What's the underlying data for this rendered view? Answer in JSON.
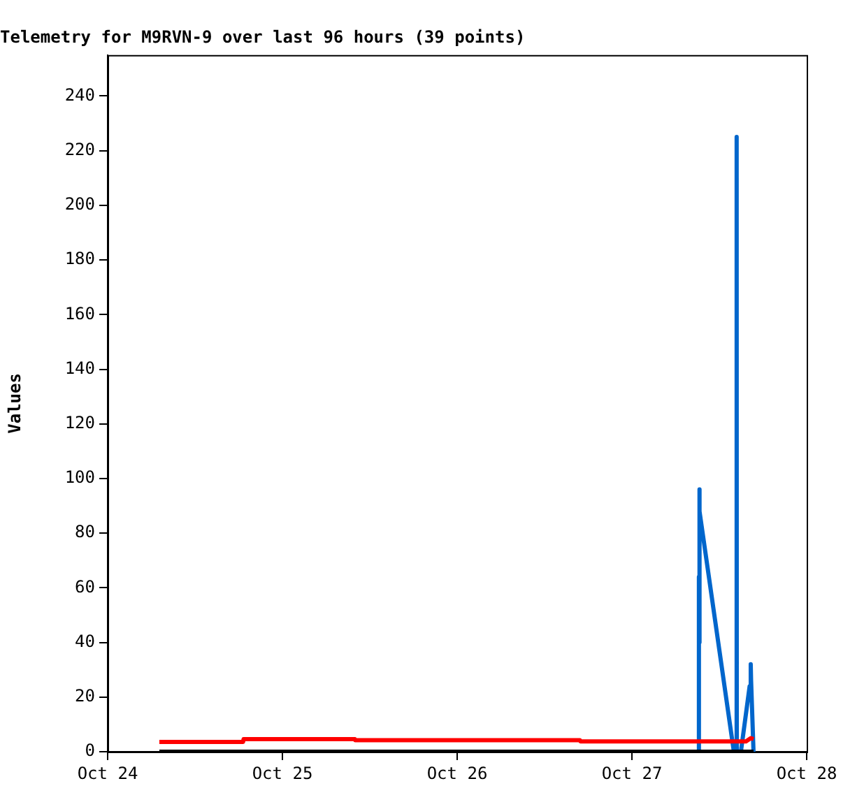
{
  "chart_data": {
    "type": "line",
    "title": "Telemetry for M9RVN-9 over last 96 hours (39 points)",
    "ylabel": "Values",
    "xlim": [
      "--10-24",
      "--10-28"
    ],
    "xticks": [
      {
        "value": "--10-24",
        "label": "Oct 24"
      },
      {
        "value": "--10-25",
        "label": "Oct 25"
      },
      {
        "value": "--10-26",
        "label": "Oct 26"
      },
      {
        "value": "--10-27",
        "label": "Oct 27"
      },
      {
        "value": "--10-28",
        "label": "Oct 28"
      }
    ],
    "ylim": [
      0,
      255
    ],
    "yticks": [
      0,
      20,
      40,
      60,
      80,
      100,
      120,
      140,
      160,
      180,
      200,
      220,
      240
    ],
    "grid": false,
    "legend": false,
    "marker": "none",
    "line_style": "solid",
    "series": [
      {
        "color": "#000000",
        "x": [
          "--10-24T07:06",
          "--10-27T16:42"
        ],
        "values": [
          0,
          0
        ]
      },
      {
        "color": "#ff0000",
        "x": [
          "--10-24T07:06",
          "--10-24T18:36",
          "--10-24T18:40",
          "--10-25T09:58",
          "--10-25T10:00",
          "--10-26T16:52",
          "--10-26T16:55",
          "--10-27T15:40",
          "--10-27T16:20",
          "--10-27T16:42"
        ],
        "values": [
          3.6,
          3.6,
          4.6,
          4.6,
          4.2,
          4.2,
          3.8,
          3.8,
          5,
          4.6
        ]
      },
      {
        "color": "#0066cc",
        "x": [
          "--10-27T09:10",
          "--10-27T09:12",
          "--10-27T09:13",
          "--10-27T09:14",
          "--10-27T09:20",
          "--10-27T14:00",
          "--10-27T14:22",
          "--10-27T14:23",
          "--10-27T14:24",
          "--10-27T14:58",
          "--10-27T16:10",
          "--10-27T16:19",
          "--10-27T16:22",
          "--10-27T16:42"
        ],
        "values": [
          0,
          64,
          40,
          96,
          88,
          0,
          0,
          225,
          0,
          0,
          24,
          32,
          26,
          0
        ]
      }
    ]
  }
}
